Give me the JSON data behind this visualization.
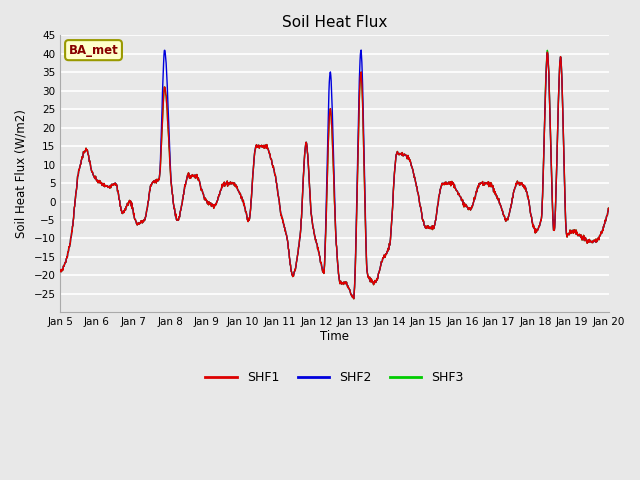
{
  "title": "Soil Heat Flux",
  "ylabel": "Soil Heat Flux (W/m2)",
  "xlabel": "Time",
  "ylim": [
    -30,
    45
  ],
  "bg_color": "#e8e8e8",
  "line_colors": {
    "SHF1": "#dd0000",
    "SHF2": "#0000dd",
    "SHF3": "#00cc00"
  },
  "line_widths": {
    "SHF1": 1.0,
    "SHF2": 1.0,
    "SHF3": 1.0
  },
  "label_box_text": "BA_met",
  "label_box_facecolor": "#ffffcc",
  "label_box_edgecolor": "#999900",
  "label_text_color": "#880000",
  "xtick_labels": [
    "Jan 5",
    "Jan 6",
    "Jan 7",
    "Jan 8",
    "Jan 9",
    "Jan 10",
    "Jan 11",
    "Jan 12",
    "Jan 13",
    "Jan 14",
    "Jan 15",
    "Jan 16",
    "Jan 17",
    "Jan 18",
    "Jan 19",
    "Jan 20"
  ],
  "xtick_positions": [
    5,
    6,
    7,
    8,
    9,
    10,
    11,
    12,
    13,
    14,
    15,
    16,
    17,
    18,
    19,
    20
  ]
}
